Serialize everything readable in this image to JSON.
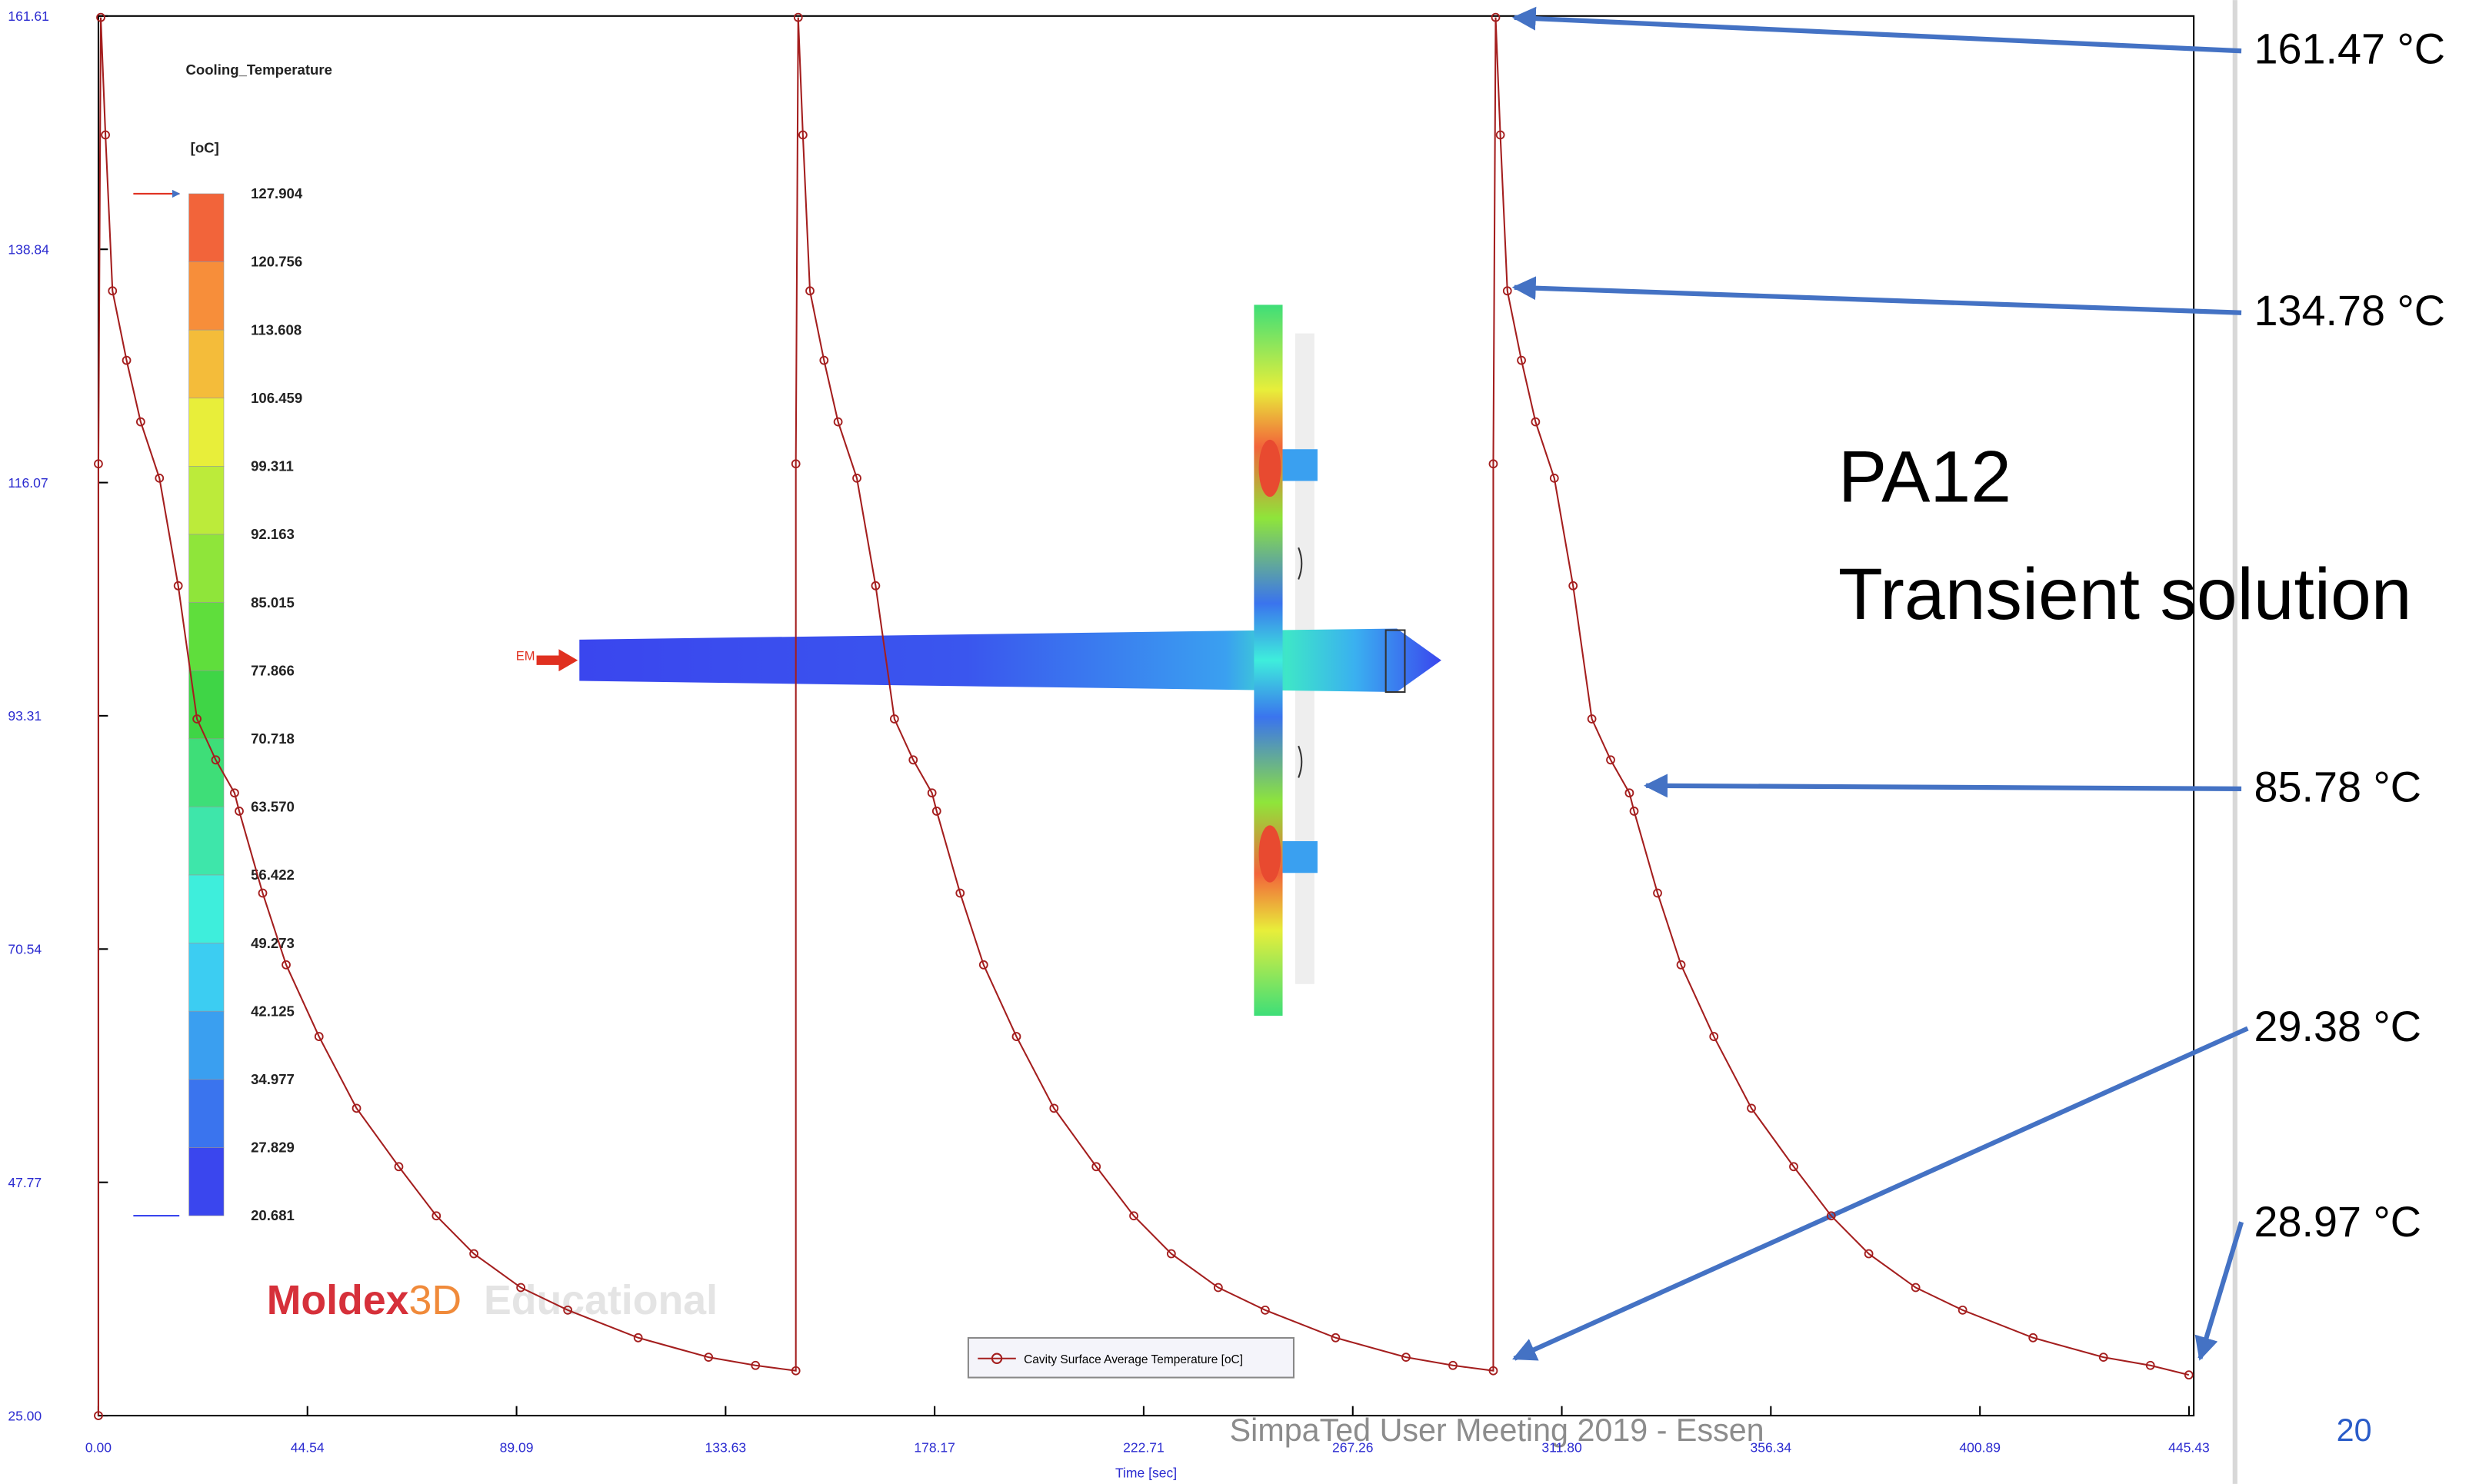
{
  "chart_data": {
    "type": "line",
    "x_label": "Time [sec]",
    "xlim": [
      0,
      445.43
    ],
    "ylim": [
      25,
      161.61
    ],
    "xticks": [
      {
        "value": 0,
        "label": "0.00"
      },
      44.54,
      89.09,
      133.63,
      178.17,
      222.71,
      267.26,
      {
        "value": 311.8,
        "label": "311.80"
      },
      356.34,
      400.89,
      445.43
    ],
    "yticks": [
      {
        "value": 25,
        "label": "25.00"
      },
      47.77,
      70.54,
      93.31,
      116.07,
      138.84,
      161.61
    ],
    "series": [
      {
        "name": "Cavity Surface Average Temperature [oC]",
        "color": "#a41e1e",
        "x": [
          0,
          0,
          0.5,
          1.5,
          3,
          6,
          9,
          13,
          17,
          21,
          25,
          29,
          30,
          35,
          40,
          47,
          55,
          64,
          72,
          80,
          90,
          100,
          115,
          130,
          140,
          148.6,
          148.6,
          149.1,
          150.1,
          151.6,
          154.6,
          157.6,
          161.6,
          165.6,
          169.6,
          173.6,
          177.6,
          178.6,
          183.6,
          188.6,
          195.6,
          203.6,
          212.6,
          220.6,
          228.6,
          238.6,
          248.6,
          263.6,
          278.6,
          288.6,
          297.2,
          297.2,
          297.7,
          298.7,
          300.2,
          303.2,
          306.2,
          310.2,
          314.2,
          318.2,
          322.2,
          326.2,
          327.2,
          332.2,
          337.2,
          344.2,
          352.2,
          361.2,
          369.2,
          377.2,
          387.2,
          397.2,
          412.2,
          427.2,
          437.2,
          445.4
        ],
        "values": [
          25,
          117.9,
          161.47,
          150,
          134.78,
          128,
          122,
          116.5,
          106,
          93,
          89,
          85.78,
          84,
          76,
          69,
          62,
          55,
          49.3,
          44.5,
          40.8,
          37.5,
          35.3,
          32.6,
          30.7,
          29.9,
          29.38,
          117.9,
          161.47,
          150,
          134.78,
          128,
          122,
          116.5,
          106,
          93,
          89,
          85.78,
          84,
          76,
          69,
          62,
          55,
          49.3,
          44.5,
          40.8,
          37.5,
          35.3,
          32.6,
          30.7,
          29.9,
          29.38,
          117.9,
          161.47,
          150,
          134.78,
          128,
          122,
          116.5,
          106,
          93,
          89,
          85.78,
          84,
          76,
          69,
          62,
          55,
          49.3,
          44.5,
          40.8,
          37.5,
          35.3,
          32.6,
          30.7,
          29.9,
          28.97
        ]
      }
    ],
    "colorbar": {
      "title": "Cooling_Temperature",
      "unit": "[oC]",
      "labels": [
        127.904,
        120.756,
        113.608,
        106.459,
        99.311,
        92.163,
        85.015,
        77.866,
        70.718,
        {
          "value": 63.57,
          "label": "63.570"
        },
        56.422,
        49.273,
        42.125,
        34.977,
        27.829,
        20.681
      ],
      "colors": [
        "#f2643a",
        "#f78e3a",
        "#f4bc3a",
        "#e8ee3a",
        "#bceb3a",
        "#8fe53a",
        "#5fde3c",
        "#3fd546",
        "#3ede78",
        "#3ee6aa",
        "#3eeedc",
        "#3ccdf2",
        "#3a9ff0",
        "#3a74ee",
        "#3a46ee"
      ]
    },
    "watermark": {
      "brand": "Moldex",
      "brand_suffix": "3D",
      "edition": "Educational"
    },
    "inlet_label": "EM",
    "annotations": [
      "161.47 °C",
      "134.78 °C",
      "85.78 °C",
      "29.38 °C",
      "28.97 °C"
    ],
    "material": "PA12",
    "subtitle": "Transient solution"
  },
  "footer": {
    "text": "SimpaTed User Meeting 2019 - Essen",
    "page": "20"
  }
}
